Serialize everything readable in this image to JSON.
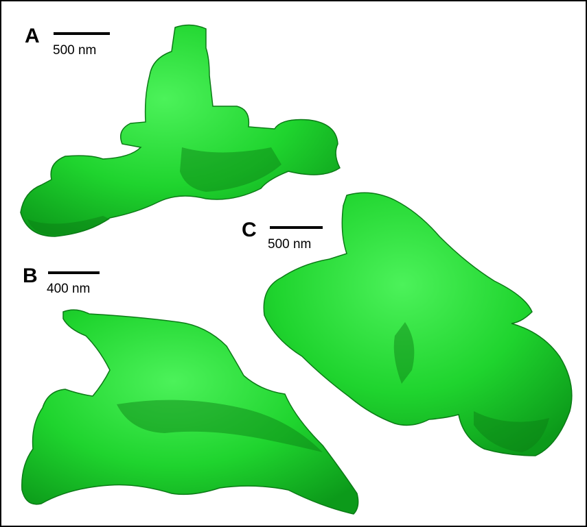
{
  "panels": [
    {
      "label": "A",
      "scale_bar": "500 nm"
    },
    {
      "label": "B",
      "scale_bar": "400 nm"
    },
    {
      "label": "C",
      "scale_bar": "500 nm"
    }
  ]
}
